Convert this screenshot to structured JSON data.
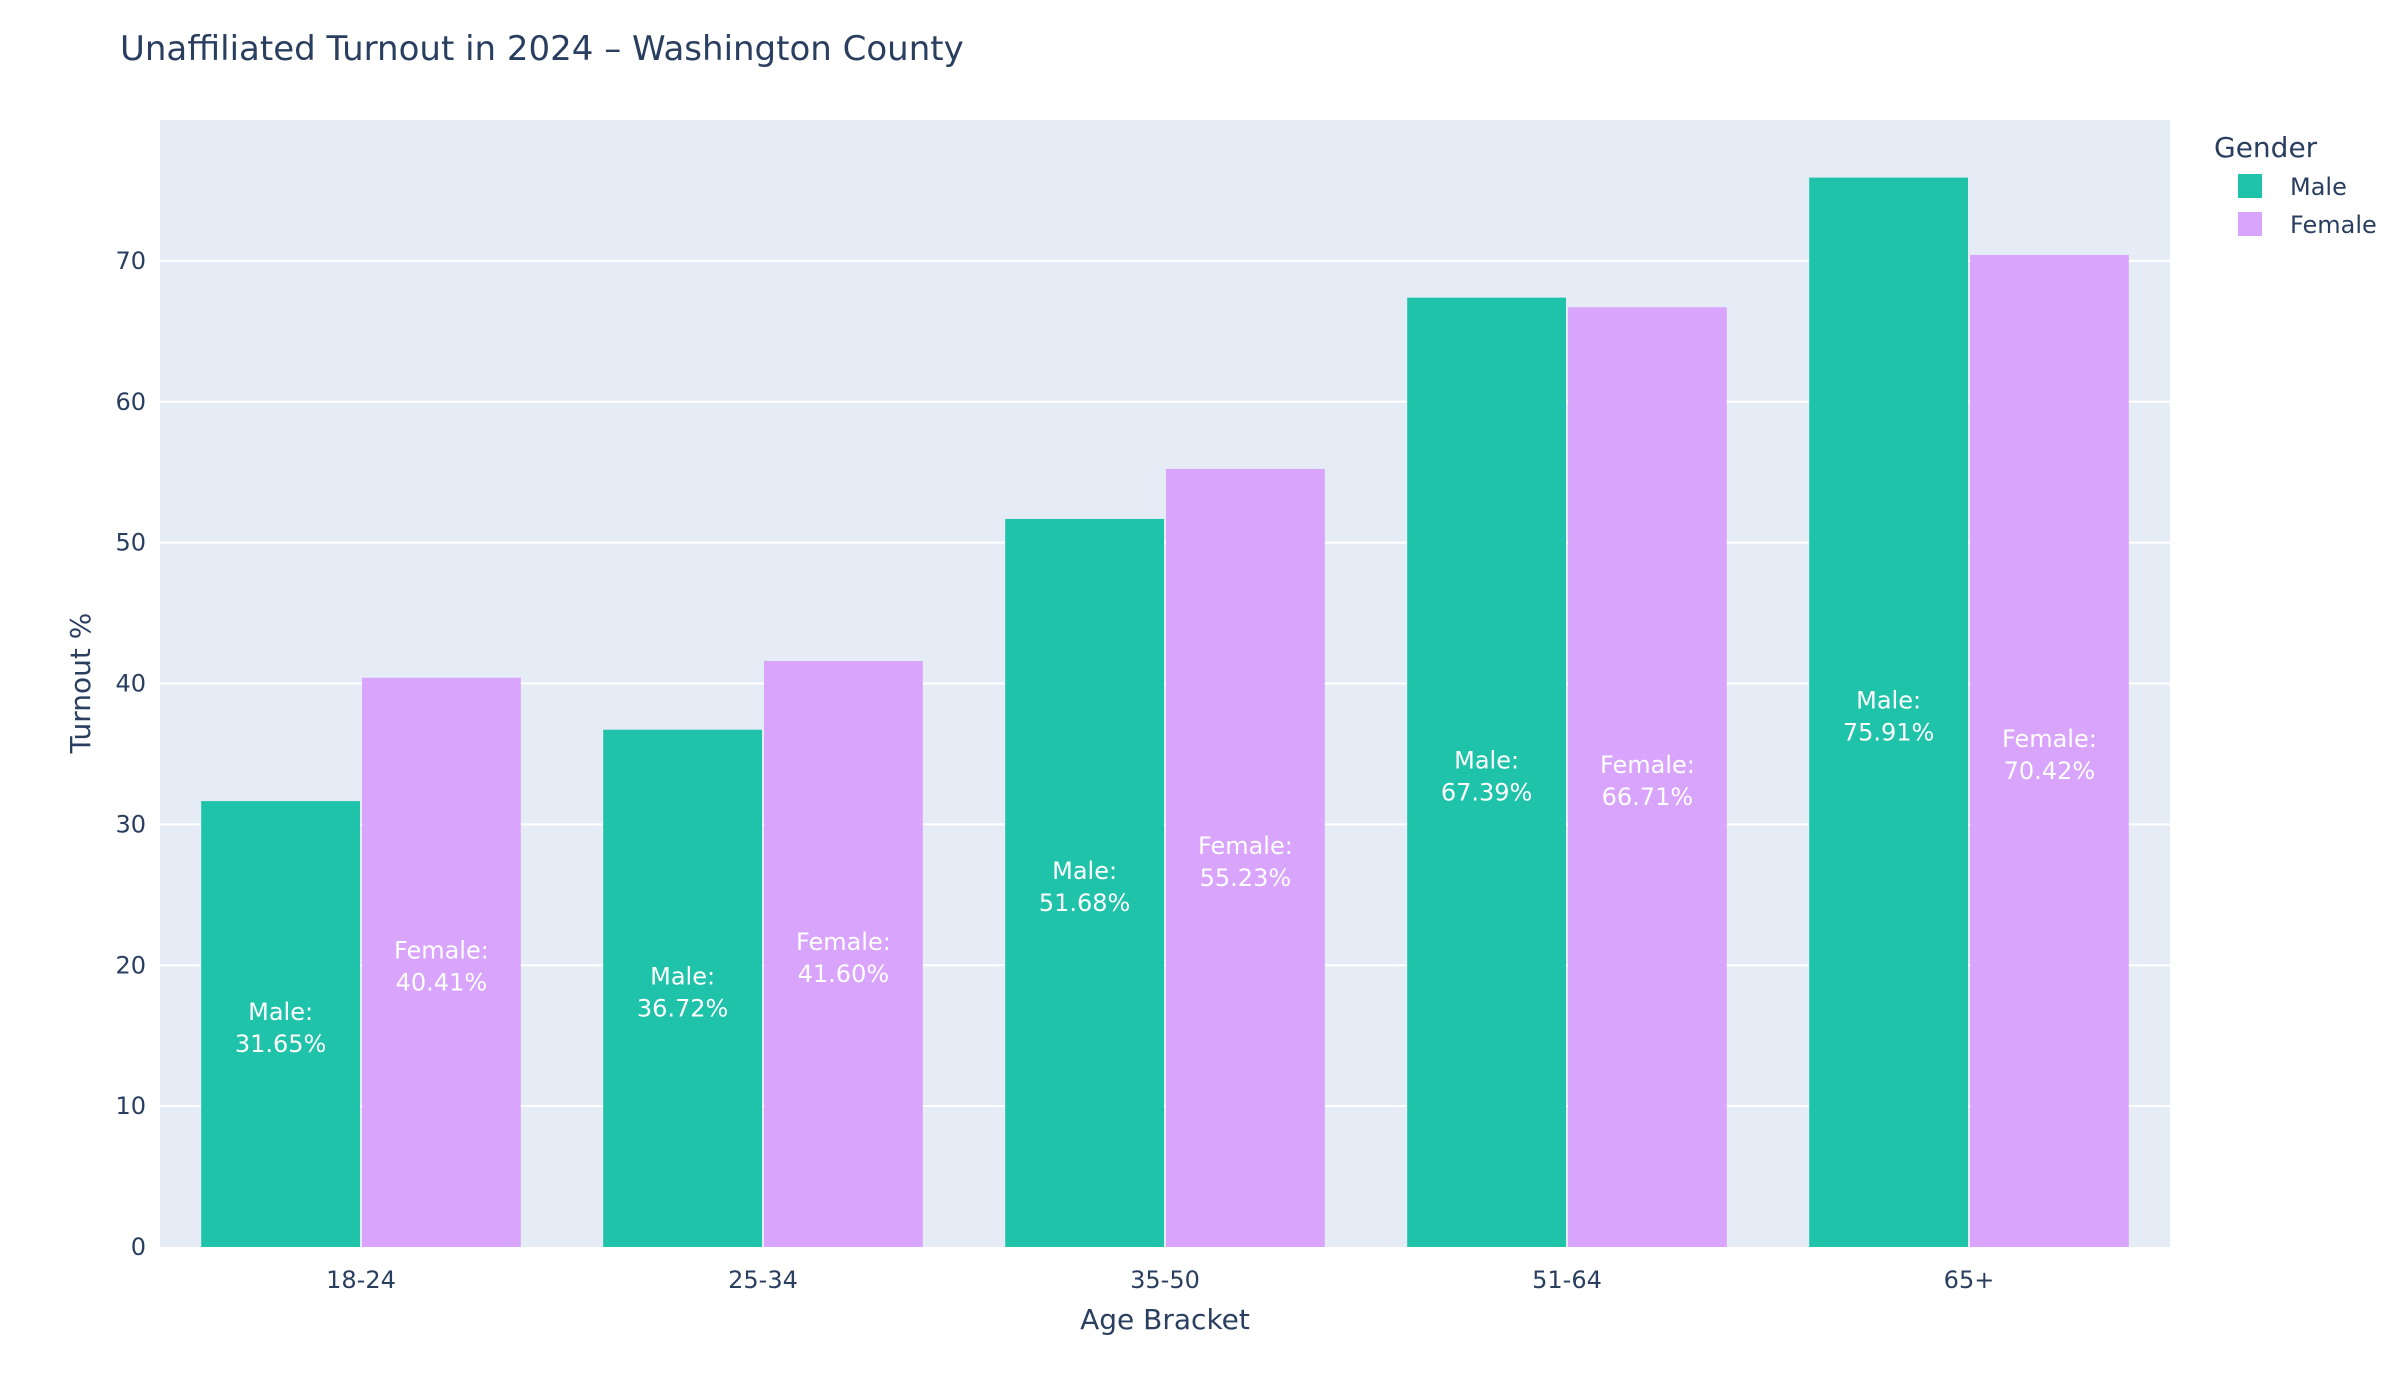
{
  "chart_data": {
    "type": "bar",
    "title": "Unaffiliated Turnout in 2024 – Washington County",
    "xlabel": "Age Bracket",
    "ylabel": "Turnout %",
    "categories": [
      "18-24",
      "25-34",
      "35-50",
      "51-64",
      "65+"
    ],
    "ylim": [
      0,
      80
    ],
    "yticks": [
      0,
      10,
      20,
      30,
      40,
      50,
      60,
      70
    ],
    "grid": true,
    "legend": {
      "title": "Gender",
      "placement": "top-right, outside plot"
    },
    "series": [
      {
        "name": "Male",
        "color": "#1fc3aa",
        "values": [
          31.65,
          36.72,
          51.68,
          67.39,
          75.91
        ],
        "labels": [
          [
            "Male:",
            "31.65%"
          ],
          [
            "Male:",
            "36.72%"
          ],
          [
            "Male:",
            "51.68%"
          ],
          [
            "Male:",
            "67.39%"
          ],
          [
            "Male:",
            "75.91%"
          ]
        ]
      },
      {
        "name": "Female",
        "color": "#d9a4fc",
        "values": [
          40.41,
          41.6,
          55.23,
          66.71,
          70.42
        ],
        "labels": [
          [
            "Female:",
            "40.41%"
          ],
          [
            "Female:",
            "41.60%"
          ],
          [
            "Female:",
            "55.23%"
          ],
          [
            "Female:",
            "66.71%"
          ],
          [
            "Female:",
            "70.42%"
          ]
        ]
      }
    ],
    "colors": {
      "plot_background": "#e5ecf6",
      "gridline": "#ffffff",
      "text": "#2a3f5f"
    }
  }
}
